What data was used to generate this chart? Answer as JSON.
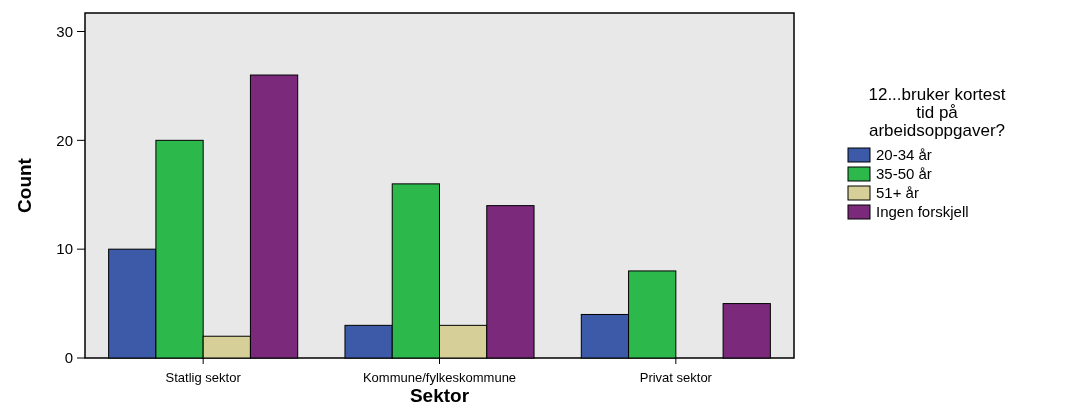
{
  "chart_data": {
    "type": "bar",
    "xlabel": "Sektor",
    "ylabel": "Count",
    "legend_title": "12...bruker kortest tid på arbeidsoppgaver?",
    "categories": [
      "Statlig sektor",
      "Kommune/fylkeskommune",
      "Privat sektor"
    ],
    "ylim": [
      0,
      31.7
    ],
    "yticks": [
      0,
      10,
      20,
      30
    ],
    "legend": "right",
    "grid": false,
    "series": [
      {
        "name": "20-34 år",
        "color": "#3d5aa8",
        "values": [
          10,
          3,
          4
        ]
      },
      {
        "name": "35-50 år",
        "color": "#2db84c",
        "values": [
          20,
          16,
          8
        ]
      },
      {
        "name": "51+ år",
        "color": "#d6cf98",
        "values": [
          2,
          3,
          null
        ]
      },
      {
        "name": "Ingen forskjell",
        "color": "#7b2a7b",
        "values": [
          26,
          14,
          5
        ]
      }
    ]
  }
}
